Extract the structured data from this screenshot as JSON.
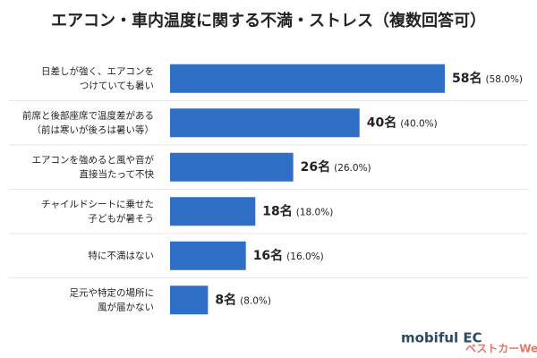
{
  "chart_data": {
    "type": "hbar",
    "title": "エアコン・車内温度に関する不満・ストレス（複数回答可）",
    "categories": [
      [
        "日差しが強く、エアコンを",
        "つけていても暑い"
      ],
      [
        "前席と後部座席で温度差がある",
        "（前は寒いが後ろは暑い等）"
      ],
      [
        "エアコンを強めると風や音が",
        "直接当たって不快"
      ],
      [
        "チャイルドシートに乗せた",
        "子どもが暑そう"
      ],
      [
        "特に不満はない"
      ],
      [
        "足元や特定の場所に",
        "風が届かない"
      ]
    ],
    "values": [
      58,
      40,
      26,
      18,
      16,
      8
    ],
    "value_labels": [
      "58名",
      "40名",
      "26名",
      "18名",
      "16名",
      "8名"
    ],
    "percent_labels": [
      "(58.0%)",
      "(40.0%)",
      "(26.0%)",
      "(18.0%)",
      "(16.0%)",
      "(8.0%)"
    ],
    "color": "#2f6fc6",
    "brand": "mobiful EC",
    "watermark": "ベストカーWeb"
  }
}
